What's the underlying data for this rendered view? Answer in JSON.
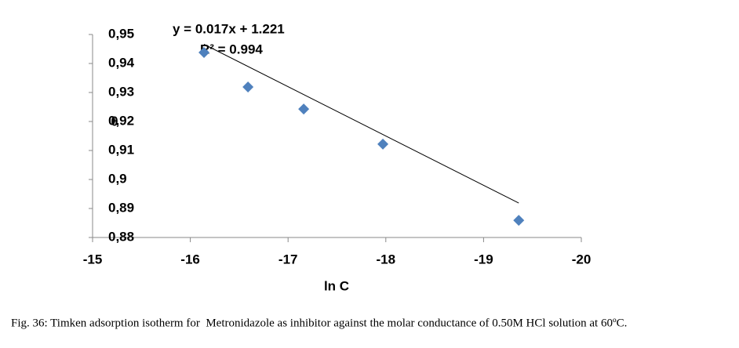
{
  "chart_data": {
    "type": "scatter",
    "x_label": "ln C",
    "y_label": "θ",
    "x": [
      -16.14,
      -16.59,
      -17.16,
      -17.97,
      -19.36
    ],
    "series": [
      {
        "name": "θ",
        "color": "#4f81bd",
        "values": [
          0.9438,
          0.9319,
          0.9243,
          0.9122,
          0.8859
        ]
      }
    ],
    "trendline": {
      "slope": 0.017,
      "intercept": 1.221,
      "color": "#000000",
      "equation": "y = 0.017x + 1.221",
      "r2": "R² = 0.994"
    },
    "xlim": [
      -15,
      -20
    ],
    "xticks": [
      -15,
      -16,
      -17,
      -18,
      -19,
      -20
    ],
    "ylim": [
      0.88,
      0.95
    ],
    "yticks": [
      {
        "value": 0.88,
        "label": "0,88"
      },
      {
        "value": 0.89,
        "label": "0,89"
      },
      {
        "value": 0.9,
        "label": "0,9"
      },
      {
        "value": 0.91,
        "label": "0,91"
      },
      {
        "value": 0.92,
        "label": "0,92"
      },
      {
        "value": 0.93,
        "label": "0,93"
      },
      {
        "value": 0.94,
        "label": "0,94"
      },
      {
        "value": 0.95,
        "label": "0,95"
      }
    ],
    "grid": false
  },
  "caption": "Fig. 36: Timken adsorption isotherm for  Metronidazole as inhibitor against the molar conductance of 0.50M HCl solution at 60ºC."
}
